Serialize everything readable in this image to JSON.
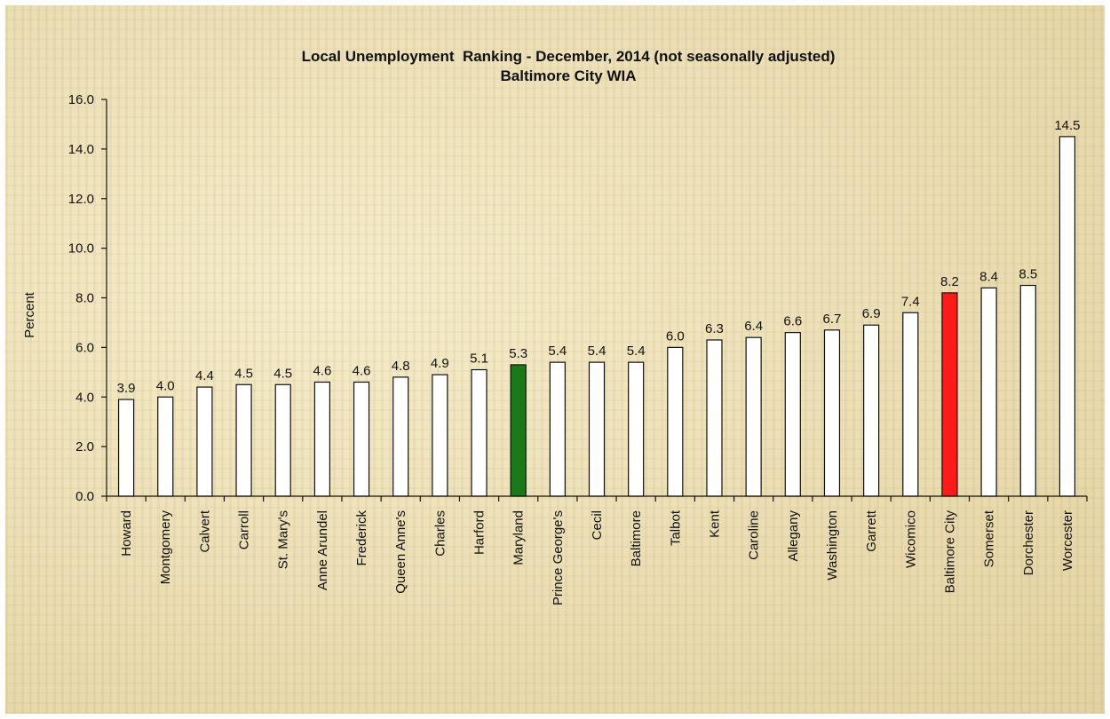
{
  "chart_data": {
    "type": "bar",
    "title": "Local Unemployment  Ranking - December, 2014 (not seasonally adjusted)",
    "subtitle": "Baltimore City WIA",
    "xlabel": "",
    "ylabel": "Percent",
    "ylim": [
      0,
      16
    ],
    "yticks": [
      "0.0",
      "2.0",
      "4.0",
      "6.0",
      "8.0",
      "10.0",
      "12.0",
      "14.0",
      "16.0"
    ],
    "grid": false,
    "categories": [
      "Howard",
      "Montgomery",
      "Calvert",
      "Carroll",
      "St. Mary's",
      "Anne Arundel",
      "Frederick",
      "Queen Anne's",
      "Charles",
      "Harford",
      "Maryland",
      "Prince George's",
      "Cecil",
      "Baltimore",
      "Talbot",
      "Kent",
      "Caroline",
      "Allegany",
      "Washington",
      "Garrett",
      "Wicomico",
      "Baltimore City",
      "Somerset",
      "Dorchester",
      "Worcester"
    ],
    "values": [
      3.9,
      4.0,
      4.4,
      4.5,
      4.5,
      4.6,
      4.6,
      4.8,
      4.9,
      5.1,
      5.3,
      5.4,
      5.4,
      5.4,
      6.0,
      6.3,
      6.4,
      6.6,
      6.7,
      6.9,
      7.4,
      8.2,
      8.4,
      8.5,
      14.5
    ],
    "data_labels": [
      "3.9",
      "4.0",
      "4.4",
      "4.5",
      "4.5",
      "4.6",
      "4.6",
      "4.8",
      "4.9",
      "5.1",
      "5.3",
      "5.4",
      "5.4",
      "5.4",
      "6.0",
      "6.3",
      "6.4",
      "6.6",
      "6.7",
      "6.9",
      "7.4",
      "8.2",
      "8.4",
      "8.5",
      "14.5"
    ],
    "colors": {
      "default": "#ffffff",
      "Maryland": "#1a7a1a",
      "Baltimore City": "#ff1a1a"
    }
  }
}
